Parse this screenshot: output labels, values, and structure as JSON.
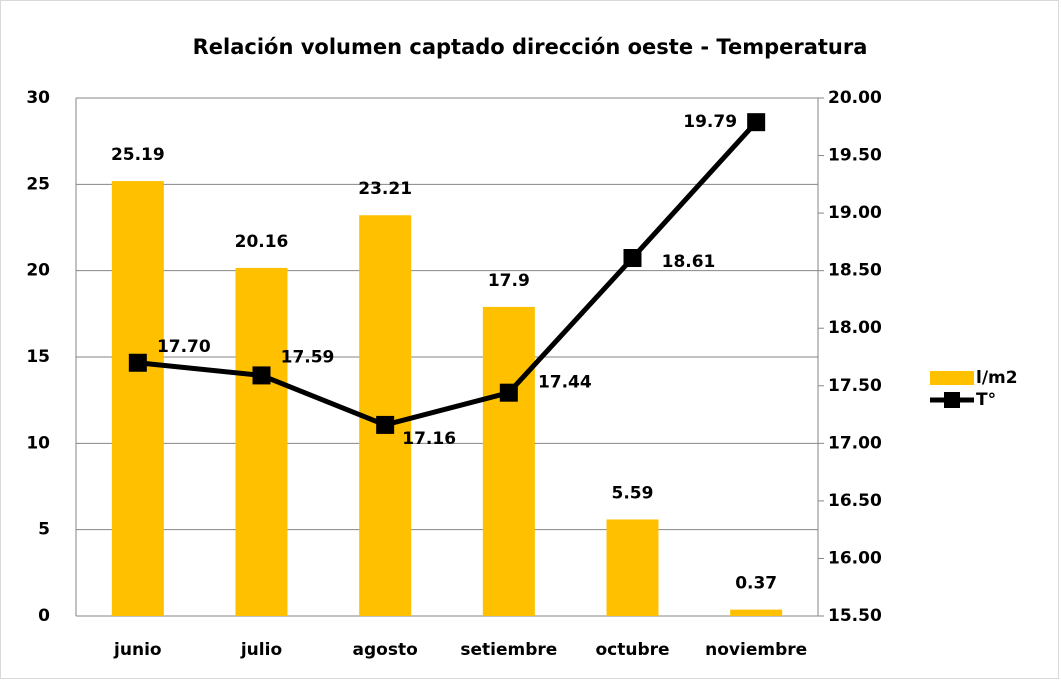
{
  "chart_data": {
    "type": "bar-line",
    "title": "Relación volumen captado dirección oeste - Temperatura",
    "categories": [
      "junio",
      "julio",
      "agosto",
      "setiembre",
      "octubre",
      "noviembre"
    ],
    "series": [
      {
        "name": "l/m2",
        "type": "bar",
        "color": "#ffc000",
        "values": [
          25.19,
          20.16,
          23.21,
          17.9,
          5.59,
          0.37
        ]
      },
      {
        "name": "T°",
        "type": "line",
        "axis": "y2",
        "color": "#000000",
        "values": [
          17.7,
          17.59,
          17.16,
          17.44,
          18.61,
          19.79
        ],
        "value_labels": [
          "17.70",
          "17.59",
          "17.16",
          "17.44",
          "18.61",
          "19.79"
        ]
      }
    ],
    "ylim": [
      0,
      30
    ],
    "yticks": [
      0,
      5,
      10,
      15,
      20,
      25,
      30
    ],
    "y2lim": [
      15.5,
      20
    ],
    "y2ticks": [
      {
        "value": 15.5,
        "label": "15.50"
      },
      {
        "value": 16,
        "label": "16.00"
      },
      {
        "value": 16.5,
        "label": "16.50"
      },
      {
        "value": 17,
        "label": "17.00"
      },
      {
        "value": 17.5,
        "label": "17.50"
      },
      {
        "value": 18,
        "label": "18.00"
      },
      {
        "value": 18.5,
        "label": "18.50"
      },
      {
        "value": 19,
        "label": "19.00"
      },
      {
        "value": 19.5,
        "label": "19.50"
      },
      {
        "value": 20,
        "label": "20.00"
      }
    ],
    "grid": true,
    "legend": "right"
  }
}
